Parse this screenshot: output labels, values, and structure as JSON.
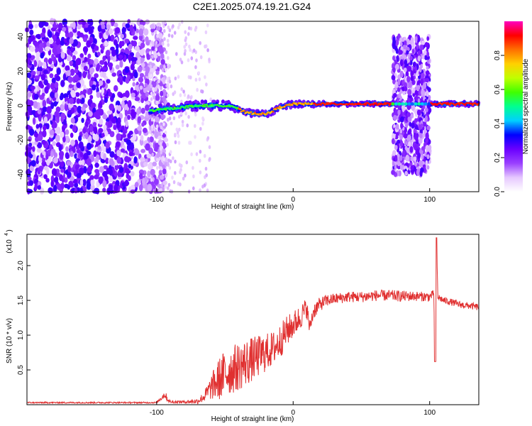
{
  "figure": {
    "title": "C2E1.2025.074.19.21.G24"
  },
  "chart_data": [
    {
      "type": "heatmap",
      "xlabel": "Height of straight line (km)",
      "ylabel": "Frequency (Hz)",
      "xlim": [
        -195,
        136
      ],
      "ylim": [
        -50,
        49
      ],
      "xticks": [
        -100,
        0,
        100
      ],
      "yticks": [
        -40,
        -20,
        0,
        20,
        40
      ],
      "colorbar": {
        "label": "Normalized spectral amplitude",
        "range": [
          0,
          1
        ],
        "ticks": [
          0.0,
          0.2,
          0.4,
          0.6,
          0.8
        ],
        "tick_labels": [
          "0.0",
          "0.2",
          "0.4",
          "0.6",
          "0.8"
        ],
        "colors": [
          "#ffffff",
          "#e6c8ff",
          "#9a40ff",
          "#6a00ff",
          "#0000ff",
          "#00d0ff",
          "#00ff90",
          "#40ff00",
          "#c0ff00",
          "#ffd000",
          "#ff7000",
          "#ff0000",
          "#ff00c0"
        ]
      },
      "features": {
        "noise_region_x": [
          -195,
          -105
        ],
        "carrier_onset_x": -105,
        "carrier_start_freq": -3,
        "carrier_drift_points": [
          [
            -105,
            -3
          ],
          [
            -70,
            0
          ],
          [
            -45,
            0
          ],
          [
            -35,
            -4
          ],
          [
            -20,
            -5
          ],
          [
            -10,
            -1
          ],
          [
            0,
            1
          ],
          [
            15,
            1
          ],
          [
            70,
            1
          ],
          [
            136,
            1
          ]
        ],
        "interference_band_x": [
          73,
          100
        ]
      }
    },
    {
      "type": "line",
      "xlabel": "Height of straight line (km)",
      "ylabel": "SNR (10 * v/v)",
      "y_scale_label": "(x10",
      "y_scale_exponent": "4",
      "xlim": [
        -195,
        136
      ],
      "ylim": [
        0,
        2.45
      ],
      "xticks": [
        -100,
        0,
        100
      ],
      "yticks": [
        0.5,
        1.0,
        1.5,
        2.0
      ],
      "ytick_labels": [
        "0.5",
        "1.0",
        "1.5",
        "2.0"
      ],
      "color": "#e03030",
      "series": [
        {
          "x": [
            -195,
            -150,
            -100,
            -94,
            -92,
            -90,
            -80,
            -70,
            -65,
            -60,
            -55,
            -50,
            -45,
            -40,
            -35,
            -30,
            -25,
            -20,
            -15,
            -10,
            -5,
            0,
            5,
            10,
            12,
            15,
            20,
            25,
            30,
            40,
            50,
            60,
            70,
            80,
            90,
            100,
            103,
            104,
            105,
            106,
            110,
            115,
            120,
            125,
            130,
            136
          ],
          "y": [
            0.03,
            0.03,
            0.03,
            0.15,
            0.08,
            0.04,
            0.04,
            0.05,
            0.12,
            0.25,
            0.35,
            0.45,
            0.5,
            0.55,
            0.6,
            0.65,
            0.7,
            0.75,
            0.8,
            0.9,
            1.05,
            1.15,
            1.25,
            1.4,
            1.1,
            1.35,
            1.45,
            1.5,
            1.52,
            1.55,
            1.55,
            1.57,
            1.57,
            1.56,
            1.56,
            1.55,
            1.6,
            0.62,
            2.4,
            1.55,
            1.5,
            1.48,
            1.45,
            1.43,
            1.42,
            1.4
          ],
          "noise_amplitude": [
            0.01,
            0.01,
            0.01,
            0.06,
            0.04,
            0.02,
            0.02,
            0.04,
            0.08,
            0.18,
            0.3,
            0.35,
            0.35,
            0.35,
            0.35,
            0.32,
            0.3,
            0.28,
            0.25,
            0.25,
            0.22,
            0.2,
            0.18,
            0.15,
            0.1,
            0.12,
            0.1,
            0.09,
            0.08,
            0.08,
            0.08,
            0.08,
            0.08,
            0.08,
            0.07,
            0.07,
            0.05,
            0.05,
            0.05,
            0.05,
            0.05,
            0.05,
            0.05,
            0.05,
            0.05,
            0.05
          ]
        }
      ]
    }
  ]
}
